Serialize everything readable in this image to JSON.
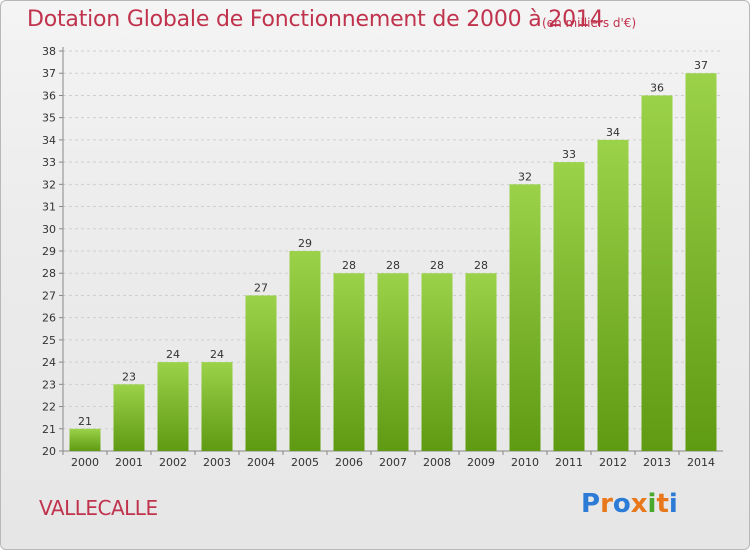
{
  "header": {
    "title": "Dotation Globale de Fonctionnement de 2000 à 2014",
    "unit": "(en milliers d'€)"
  },
  "footer": {
    "commune": "VALLECALLE",
    "brand": "Proxiti"
  },
  "colors": {
    "bar_top": "#9bd24a",
    "bar_bottom": "#5e9a12",
    "title": "#c0334d",
    "grid": "#cfcfcf"
  },
  "chart_data": {
    "type": "bar",
    "title": "Dotation Globale de Fonctionnement de 2000 à 2014",
    "subtitle": "(en milliers d'€)",
    "xlabel": "",
    "ylabel": "",
    "categories": [
      "2000",
      "2001",
      "2002",
      "2003",
      "2004",
      "2005",
      "2006",
      "2007",
      "2008",
      "2009",
      "2010",
      "2011",
      "2012",
      "2013",
      "2014"
    ],
    "values": [
      21,
      23,
      24,
      24,
      27,
      29,
      28,
      28,
      28,
      28,
      32,
      33,
      34,
      36,
      37
    ],
    "ylim": [
      20,
      38
    ],
    "yticks": [
      20,
      21,
      22,
      23,
      24,
      25,
      26,
      27,
      28,
      29,
      30,
      31,
      32,
      33,
      34,
      35,
      36,
      37,
      38
    ],
    "grid": true,
    "data_labels": true
  }
}
